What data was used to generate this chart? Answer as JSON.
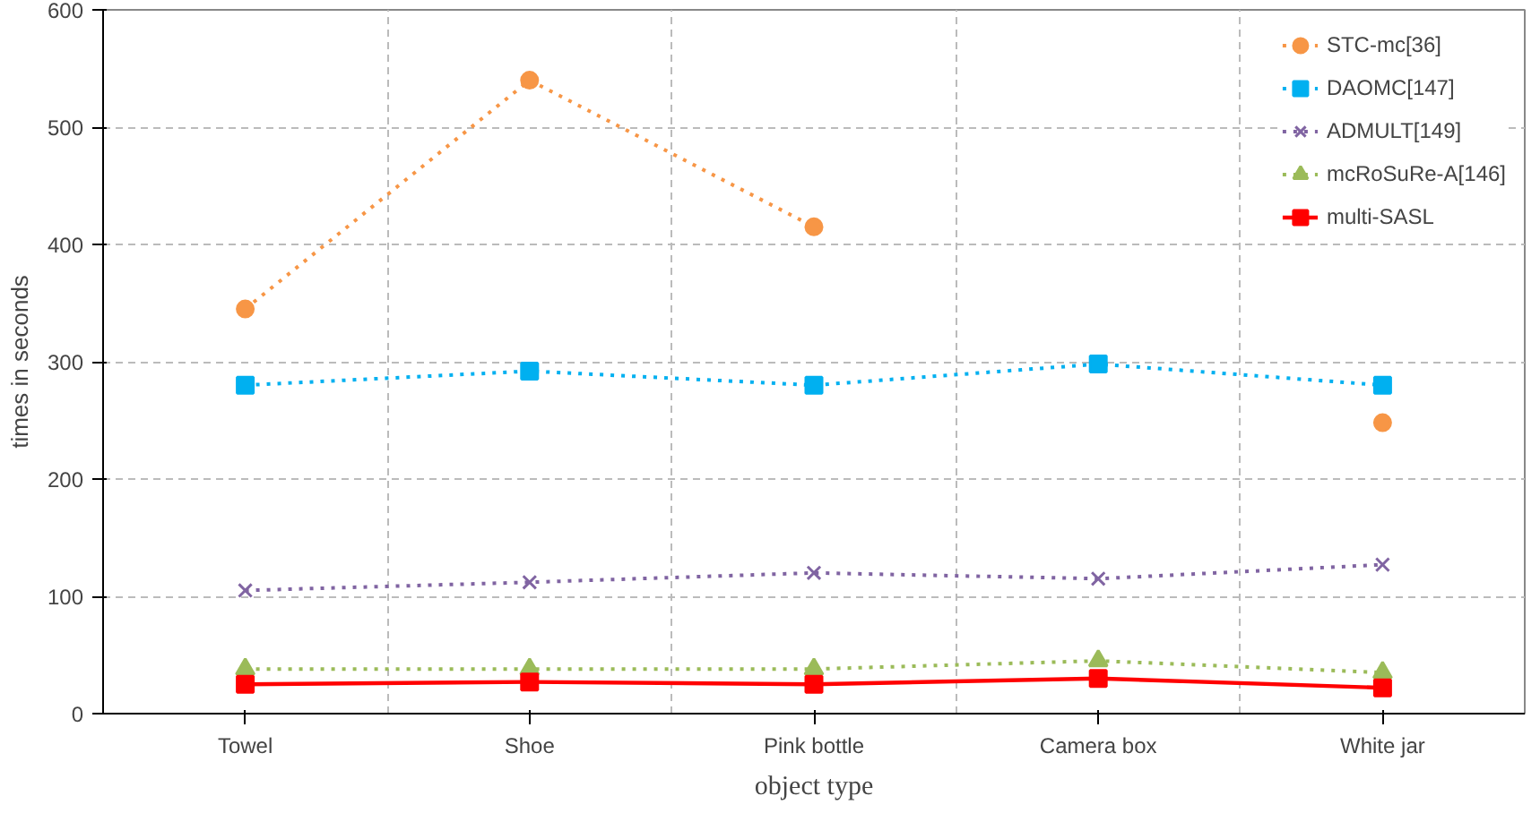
{
  "chart_data": {
    "type": "line",
    "xlabel": "object type",
    "ylabel": "times in seconds",
    "categories": [
      "Towel",
      "Shoe",
      "Pink bottle",
      "Camera box",
      "White jar"
    ],
    "ylim": [
      0,
      600
    ],
    "yticks": [
      0,
      100,
      200,
      300,
      400,
      500,
      600
    ],
    "grid": true,
    "legend": "top right",
    "series": [
      {
        "name": "STC-mc[36]",
        "color": "#f79646",
        "marker": "circle",
        "line_style": "dotted",
        "values": [
          345,
          540,
          415,
          null,
          248
        ]
      },
      {
        "name": "DAOMC[147]",
        "color": "#00b0f0",
        "marker": "square",
        "line_style": "dotted",
        "values": [
          280,
          292,
          280,
          298,
          280
        ]
      },
      {
        "name": "ADMULT[149]",
        "color": "#8064a2",
        "marker": "cross",
        "line_style": "dotted",
        "values": [
          105,
          112,
          120,
          115,
          127
        ]
      },
      {
        "name": "mcRoSuRe-A[146]",
        "color": "#9bbb59",
        "marker": "triangle",
        "line_style": "dotted",
        "values": [
          38,
          38,
          38,
          45,
          35
        ]
      },
      {
        "name": "multi-SASL",
        "color": "#ff0000",
        "marker": "square",
        "line_style": "solid",
        "values": [
          25,
          27,
          25,
          30,
          22
        ]
      }
    ]
  }
}
